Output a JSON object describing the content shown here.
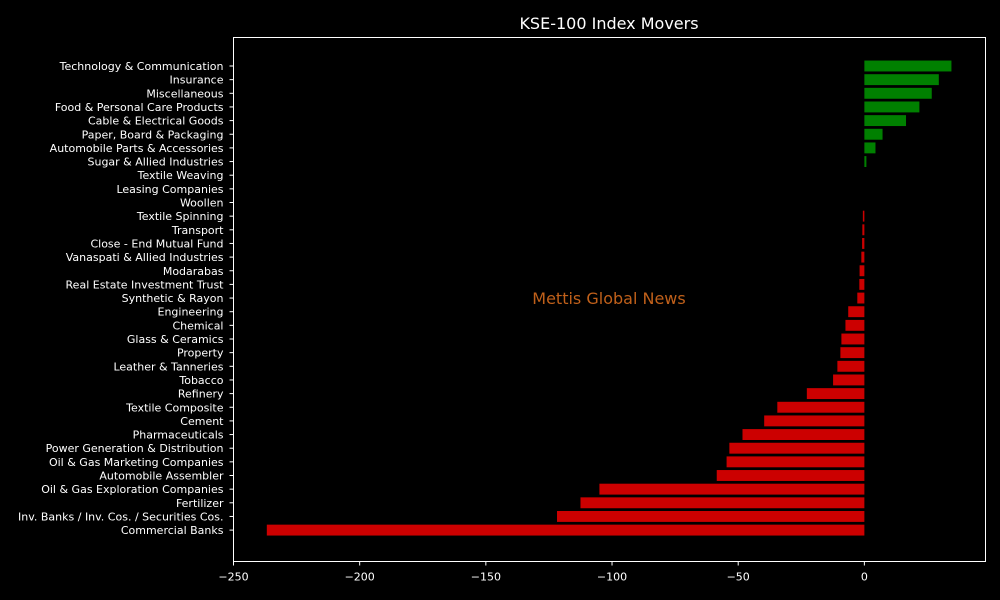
{
  "chart_data": {
    "type": "bar",
    "orientation": "horizontal",
    "title": "KSE-100 Index Movers",
    "watermark": "Mettis Global News",
    "xlabel": "",
    "ylabel": "",
    "xlim": [
      -250.0,
      48.0
    ],
    "xticks": [
      -250,
      -200,
      -150,
      -100,
      -50,
      0
    ],
    "xtick_labels": [
      "−250",
      "−200",
      "−150",
      "−100",
      "−50",
      "0"
    ],
    "grid": false,
    "legend": "none",
    "colors": {
      "positive": "#008000",
      "negative": "#cc0000",
      "background": "#000000",
      "axes": "#ffffff",
      "text": "#ffffff",
      "watermark": "#c0601a"
    },
    "categories": [
      "Technology & Communication",
      "Insurance",
      "Miscellaneous",
      "Food & Personal Care Products",
      "Cable & Electrical Goods",
      "Paper, Board & Packaging",
      "Automobile Parts & Accessories",
      "Sugar & Allied Industries",
      "Textile Weaving",
      "Leasing Companies",
      "Woollen",
      "Textile Spinning",
      "Transport",
      "Close - End Mutual Fund",
      "Vanaspati & Allied Industries",
      "Modarabas",
      "Real Estate Investment Trust",
      "Synthetic & Rayon",
      "Engineering",
      "Chemical",
      "Glass & Ceramics",
      "Property",
      "Leather & Tanneries",
      "Tobacco",
      "Refinery",
      "Textile Composite",
      "Cement",
      "Pharmaceuticals",
      "Power Generation & Distribution",
      "Oil & Gas Marketing Companies",
      "Automobile Assembler",
      "Oil & Gas Exploration Companies",
      "Fertilizer",
      "Inv. Banks / Inv. Cos. / Securities Cos.",
      "Commercial Banks"
    ],
    "values": [
      34.5,
      29.5,
      26.7,
      21.8,
      16.5,
      7.2,
      4.4,
      0.8,
      0.0,
      0.0,
      0.0,
      -0.6,
      -0.8,
      -0.9,
      -1.2,
      -1.9,
      -2.0,
      -2.8,
      -6.4,
      -7.5,
      -9.1,
      -9.5,
      -10.7,
      -12.4,
      -22.8,
      -34.5,
      -39.7,
      -48.3,
      -53.5,
      -54.6,
      -58.5,
      -105.0,
      -112.5,
      -121.8,
      -236.8
    ]
  }
}
